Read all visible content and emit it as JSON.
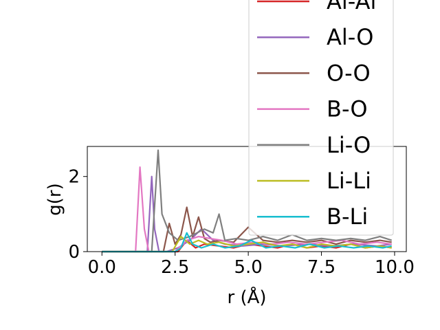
{
  "chart_data": {
    "type": "line",
    "title": "",
    "xlabel": "r ($\\AA$)",
    "xlabel_display": "r (Å)",
    "ylabel": "g(r)",
    "xlim": [
      -0.5,
      10.4
    ],
    "ylim": [
      0,
      2.8
    ],
    "xticks": [
      0.0,
      2.5,
      5.0,
      7.5,
      10.0
    ],
    "xtick_labels": [
      "0.0",
      "2.5",
      "5.0",
      "7.5",
      "10.0"
    ],
    "yticks": [
      0,
      2
    ],
    "ytick_labels": [
      "0",
      "2"
    ],
    "grid": false,
    "legend_position": "upper right",
    "series": [
      {
        "name": "Al-Al",
        "color": "#d62728",
        "x": [
          0,
          2.6,
          2.9,
          3.2,
          3.5,
          4.0,
          4.5,
          5.0,
          5.5,
          6.0,
          6.5,
          7.0,
          7.5,
          8.0,
          8.5,
          9.0,
          9.5,
          9.9
        ],
        "y": [
          0,
          0,
          0.3,
          0.1,
          0.2,
          0.15,
          0.1,
          0.2,
          0.15,
          0.1,
          0.2,
          0.1,
          0.15,
          0.1,
          0.2,
          0.1,
          0.15,
          0.1
        ]
      },
      {
        "name": "Al-O",
        "color": "#9467bd",
        "x": [
          0,
          1.55,
          1.7,
          1.8,
          1.95,
          2.2,
          2.6,
          3.0,
          3.4,
          3.8,
          4.2,
          4.8,
          5.5,
          6.2,
          7.0,
          7.8,
          8.6,
          9.4,
          9.9
        ],
        "y": [
          0,
          0,
          2.0,
          0.6,
          0,
          0,
          0.1,
          0.3,
          0.6,
          0.3,
          0.2,
          0.15,
          0.2,
          0.15,
          0.2,
          0.15,
          0.2,
          0.15,
          0.2
        ]
      },
      {
        "name": "O-O",
        "color": "#8c564b",
        "x": [
          0,
          2.1,
          2.3,
          2.5,
          2.7,
          2.9,
          3.1,
          3.3,
          3.5,
          3.7,
          4.0,
          4.5,
          5.0,
          5.5,
          6.0,
          6.5,
          7.0,
          7.5,
          8.0,
          8.5,
          9.0,
          9.5,
          9.9
        ],
        "y": [
          0,
          0,
          0.75,
          0.2,
          0.45,
          1.18,
          0.4,
          0.92,
          0.35,
          0.25,
          0.3,
          0.25,
          0.65,
          0.3,
          0.25,
          0.3,
          0.25,
          0.3,
          0.2,
          0.3,
          0.25,
          0.3,
          0.25
        ]
      },
      {
        "name": "B-O",
        "color": "#e377c2",
        "x": [
          0,
          1.15,
          1.3,
          1.45,
          1.6,
          2.5,
          2.9,
          3.3,
          3.7,
          4.1,
          4.6,
          5.2,
          5.8,
          6.4,
          7.0,
          7.6,
          8.2,
          8.8,
          9.4,
          9.9
        ],
        "y": [
          0,
          0,
          2.25,
          0.6,
          0,
          0,
          0.3,
          0.4,
          0.35,
          0.3,
          0.2,
          0.25,
          0.2,
          0.25,
          0.2,
          0.25,
          0.3,
          0.2,
          0.25,
          0.2
        ]
      },
      {
        "name": "Li-O",
        "color": "#7f7f7f",
        "x": [
          0,
          1.7,
          1.92,
          2.05,
          2.3,
          2.6,
          3.0,
          3.5,
          3.8,
          4.0,
          4.2,
          4.6,
          5.0,
          5.5,
          6.0,
          6.5,
          7.0,
          7.5,
          8.0,
          8.5,
          9.0,
          9.5,
          9.9
        ],
        "y": [
          0,
          0,
          2.7,
          1.0,
          0.5,
          0.3,
          0.4,
          0.6,
          0.5,
          1.0,
          0.3,
          0.35,
          0.3,
          0.4,
          0.3,
          0.45,
          0.3,
          0.35,
          0.3,
          0.35,
          0.3,
          0.4,
          0.3
        ]
      },
      {
        "name": "Li-Li",
        "color": "#bcbd22",
        "x": [
          0,
          2.4,
          2.7,
          3.0,
          3.3,
          3.6,
          4.0,
          4.5,
          5.0,
          5.5,
          6.0,
          6.5,
          7.0,
          7.5,
          8.0,
          8.5,
          9.0,
          9.5,
          9.9
        ],
        "y": [
          0,
          0,
          0.4,
          0.2,
          0.3,
          0.2,
          0.25,
          0.15,
          0.2,
          0.25,
          0.15,
          0.2,
          0.1,
          0.2,
          0.15,
          0.2,
          0.1,
          0.15,
          0.1
        ]
      },
      {
        "name": "B-Li",
        "color": "#17becf",
        "x": [
          0,
          2.5,
          2.7,
          2.9,
          3.1,
          3.4,
          3.8,
          4.2,
          4.7,
          5.1,
          5.6,
          6.1,
          6.6,
          7.1,
          7.6,
          8.1,
          8.6,
          9.1,
          9.6,
          9.9
        ],
        "y": [
          0,
          0,
          0.1,
          0.5,
          0.2,
          0.1,
          0.2,
          0.1,
          0.15,
          0.3,
          0.1,
          0.15,
          0.1,
          0.2,
          0.1,
          0.15,
          0.1,
          0.15,
          0.1,
          0.15
        ]
      }
    ]
  }
}
